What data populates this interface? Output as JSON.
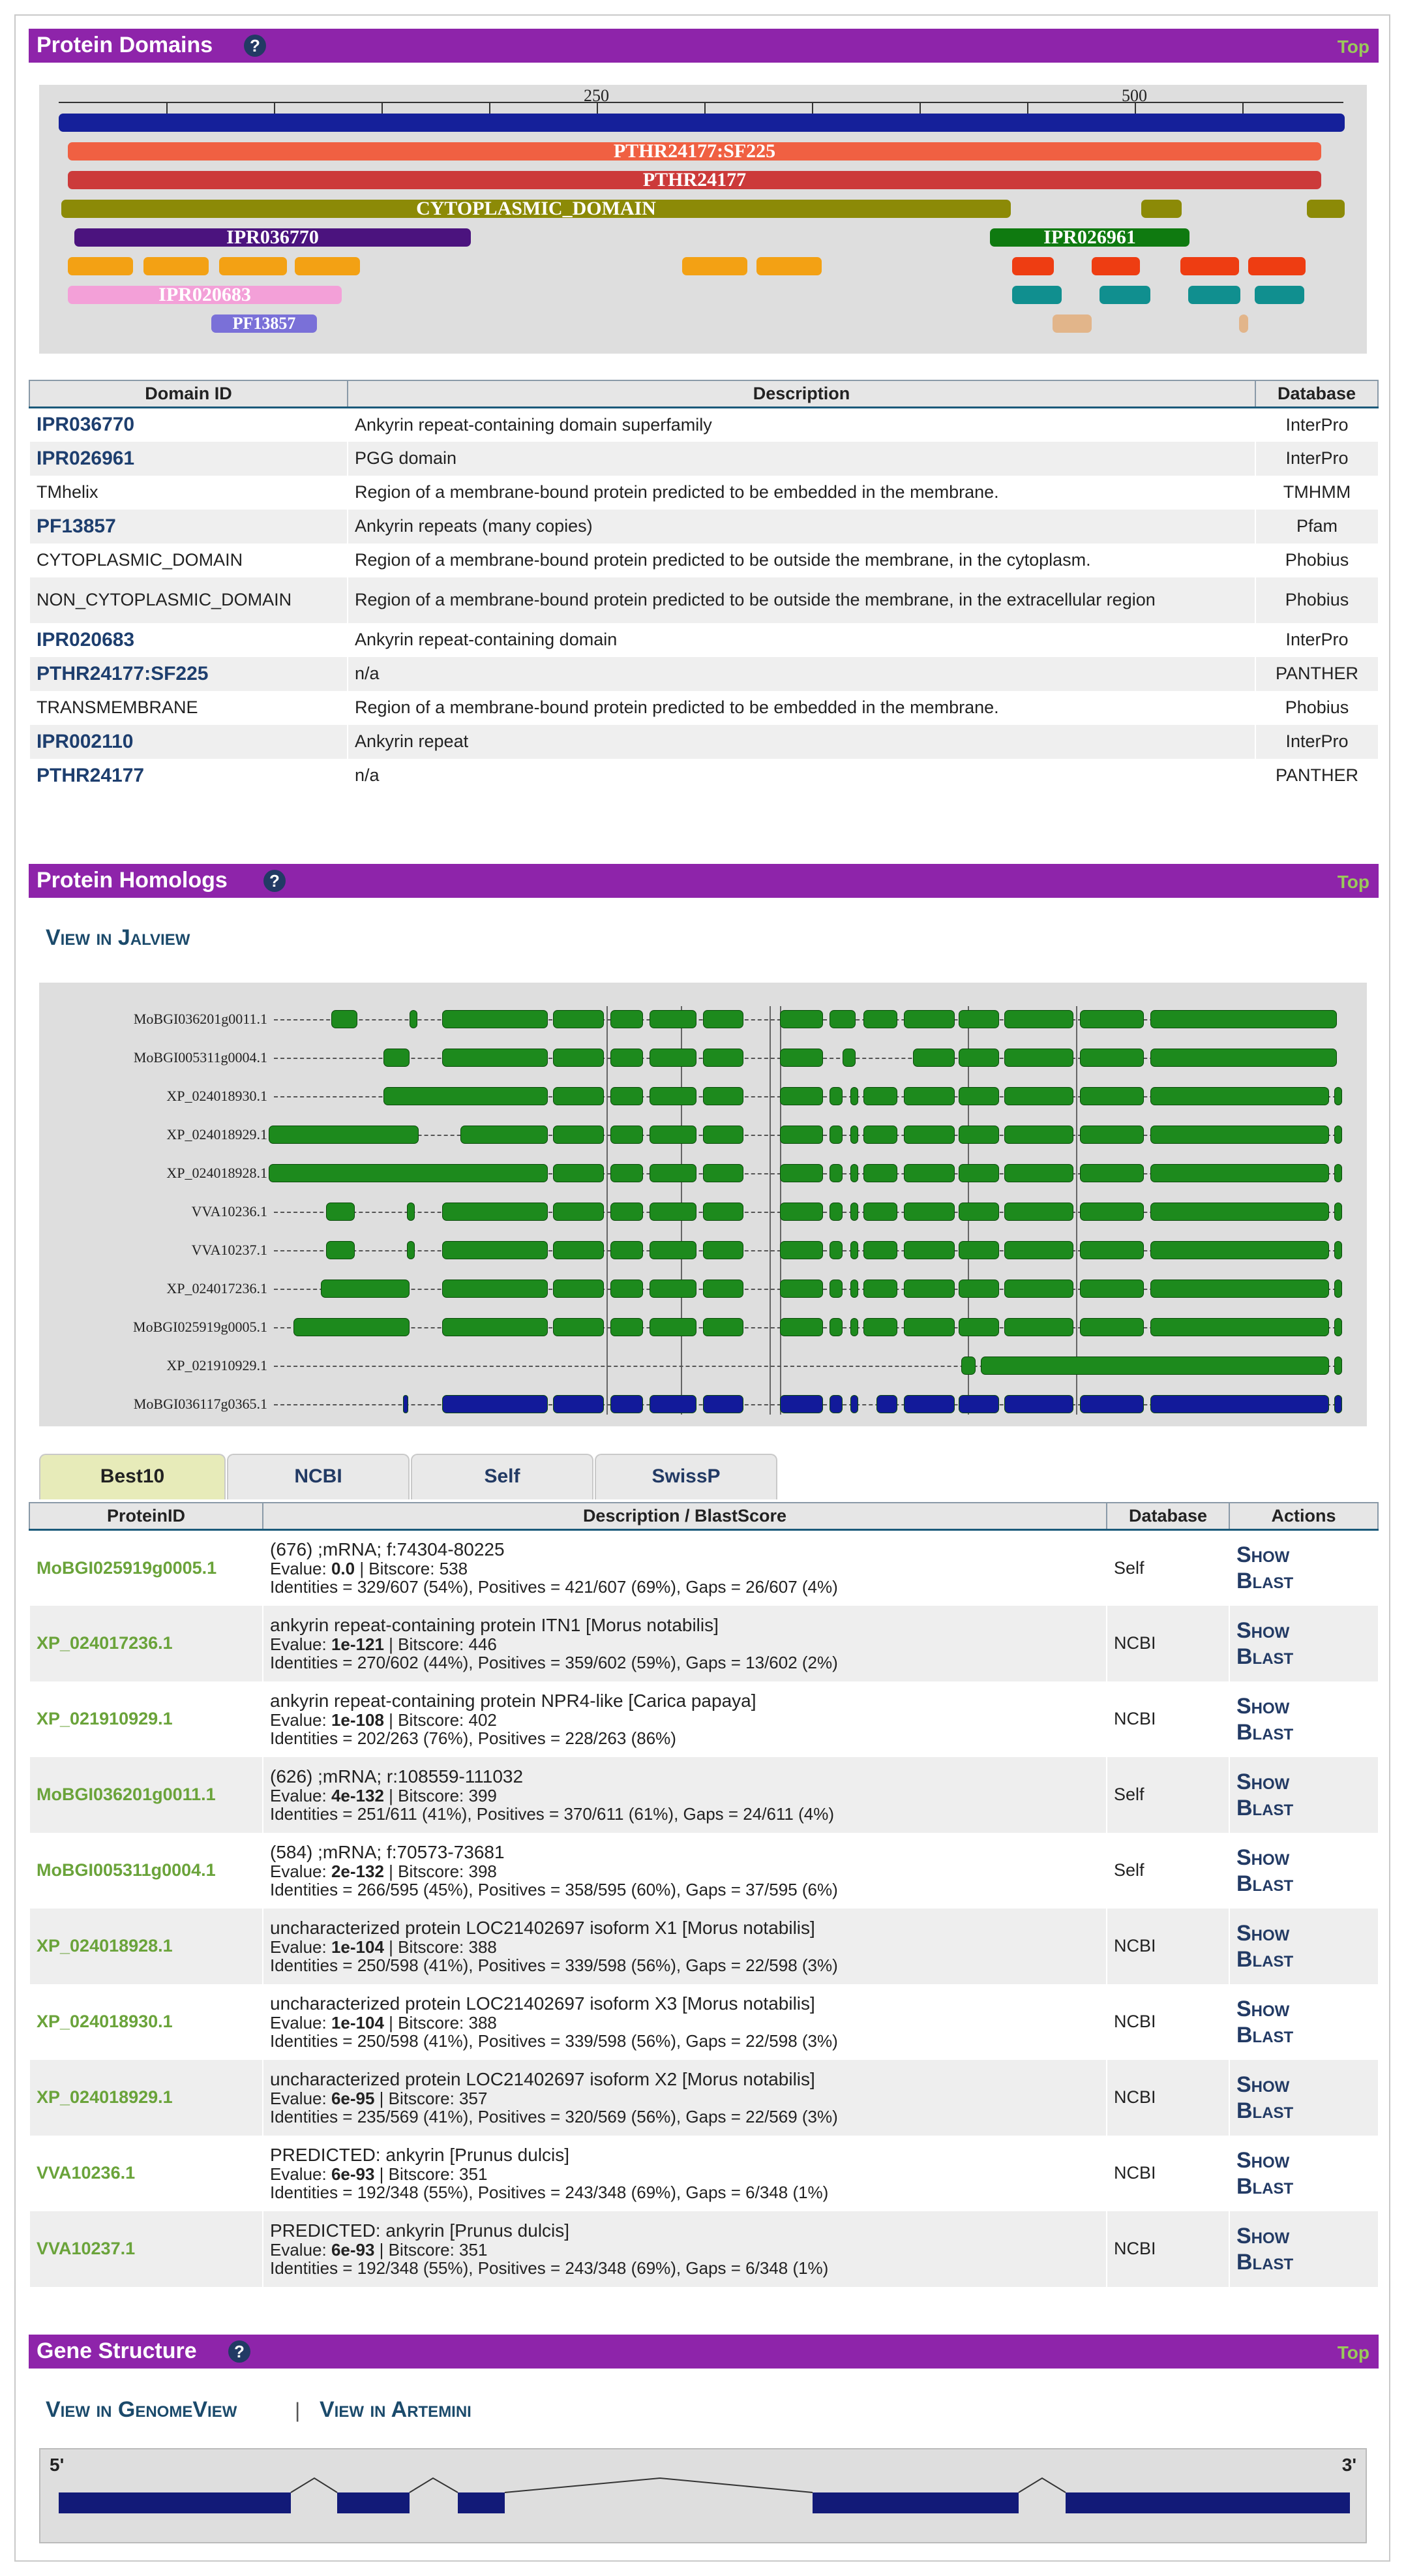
{
  "sections": {
    "domains": {
      "title": "Protein Domains",
      "top": "Top"
    },
    "homologs": {
      "title": "Protein Homologs",
      "top": "Top"
    },
    "gene": {
      "title": "Gene Structure",
      "top": "Top"
    }
  },
  "help_icon": "?",
  "domain_map": {
    "scale_labels": [
      "250",
      "500"
    ],
    "labels": {
      "pthr_sf": "PTHR24177:SF225",
      "pthr": "PTHR24177",
      "cyto": "CYTOPLASMIC_DOMAIN",
      "ipr036770": "IPR036770",
      "ipr026961": "IPR026961",
      "ipr020683": "IPR020683",
      "pf13857": "PF13857"
    },
    "colors": {
      "scale": "#15209a",
      "panther": "#f06042",
      "panther2": "#cc3a3a",
      "cyto": "#8c8a07",
      "ipr036770": "#4b137e",
      "ipr026961": "#0f7a10",
      "orange": "#f3a114",
      "red": "#ee3d12",
      "teal": "#108f8f",
      "pink": "#f3a0d8",
      "pf": "#7a70d8",
      "tan": "#e2b58a"
    }
  },
  "domain_table": {
    "headers": [
      "Domain ID",
      "Description",
      "Database"
    ],
    "rows": [
      {
        "id": "IPR036770",
        "link": true,
        "desc": "Ankyrin repeat-containing domain superfamily",
        "db": "InterPro"
      },
      {
        "id": "IPR026961",
        "link": true,
        "desc": "PGG domain",
        "db": "InterPro"
      },
      {
        "id": "TMhelix",
        "link": false,
        "desc": "Region of a membrane-bound protein predicted to be embedded in the membrane.",
        "db": "TMHMM"
      },
      {
        "id": "PF13857",
        "link": true,
        "desc": "Ankyrin repeats (many copies)",
        "db": "Pfam"
      },
      {
        "id": "CYTOPLASMIC_DOMAIN",
        "link": false,
        "desc": "Region of a membrane-bound protein predicted to be outside the membrane, in the cytoplasm.",
        "db": "Phobius"
      },
      {
        "id": "NON_CYTOPLASMIC_DOMAIN",
        "link": false,
        "desc": "Region of a membrane-bound protein predicted to be outside the membrane, in the extracellular region",
        "db": "Phobius"
      },
      {
        "id": "IPR020683",
        "link": true,
        "desc": "Ankyrin repeat-containing domain",
        "db": "InterPro"
      },
      {
        "id": "PTHR24177:SF225",
        "link": true,
        "desc": "n/a",
        "db": "PANTHER"
      },
      {
        "id": "TRANSMEMBRANE",
        "link": false,
        "desc": "Region of a membrane-bound protein predicted to be embedded in the membrane.",
        "db": "Phobius"
      },
      {
        "id": "IPR002110",
        "link": true,
        "desc": "Ankyrin repeat",
        "db": "InterPro"
      },
      {
        "id": "PTHR24177",
        "link": true,
        "desc": "n/a",
        "db": "PANTHER"
      }
    ]
  },
  "homolog_links": {
    "jalview": "View in Jalview"
  },
  "alignment": {
    "labels": [
      "MoBGI036201g0011.1",
      "MoBGI005311g0004.1",
      "XP_024018930.1",
      "XP_024018929.1",
      "XP_024018928.1",
      "VVA10236.1",
      "VVA10237.1",
      "XP_024017236.1",
      "MoBGI025919g0005.1",
      "XP_021910929.1",
      "MoBGI036117g0365.1"
    ],
    "colors": {
      "green": "#1d8a1d",
      "navy": "#121a9a"
    }
  },
  "tabs": [
    "Best10",
    "NCBI",
    "Self",
    "SwissP"
  ],
  "homolog_table": {
    "headers": [
      "ProteinID",
      "Description / BlastScore",
      "Database",
      "Actions"
    ],
    "evalue_label": "Evalue: ",
    "bitscore_sep": " | Bitscore: ",
    "actions": [
      "Show",
      "Blast"
    ],
    "rows": [
      {
        "id": "MoBGI025919g0005.1",
        "line1": "(676) ;mRNA; f:74304-80225",
        "evalue": "0.0",
        "bits": "538",
        "line3": "Identities = 329/607 (54%), Positives = 421/607 (69%), Gaps = 26/607 (4%)",
        "db": "Self"
      },
      {
        "id": "XP_024017236.1",
        "line1": "ankyrin repeat-containing protein ITN1 [Morus notabilis]",
        "evalue": "1e-121",
        "bits": "446",
        "line3": "Identities = 270/602 (44%), Positives = 359/602 (59%), Gaps = 13/602 (2%)",
        "db": "NCBI"
      },
      {
        "id": "XP_021910929.1",
        "line1": "ankyrin repeat-containing protein NPR4-like [Carica papaya]",
        "evalue": "1e-108",
        "bits": "402",
        "line3": "Identities = 202/263 (76%), Positives = 228/263 (86%)",
        "db": "NCBI"
      },
      {
        "id": "MoBGI036201g0011.1",
        "line1": "(626) ;mRNA; r:108559-111032",
        "evalue": "4e-132",
        "bits": "399",
        "line3": "Identities = 251/611 (41%), Positives = 370/611 (61%), Gaps = 24/611 (4%)",
        "db": "Self"
      },
      {
        "id": "MoBGI005311g0004.1",
        "line1": "(584) ;mRNA; f:70573-73681",
        "evalue": "2e-132",
        "bits": "398",
        "line3": "Identities = 266/595 (45%), Positives = 358/595 (60%), Gaps = 37/595 (6%)",
        "db": "Self"
      },
      {
        "id": "XP_024018928.1",
        "line1": "uncharacterized protein LOC21402697 isoform X1 [Morus notabilis]",
        "evalue": "1e-104",
        "bits": "388",
        "line3": "Identities = 250/598 (41%), Positives = 339/598 (56%), Gaps = 22/598 (3%)",
        "db": "NCBI"
      },
      {
        "id": "XP_024018930.1",
        "line1": "uncharacterized protein LOC21402697 isoform X3 [Morus notabilis]",
        "evalue": "1e-104",
        "bits": "388",
        "line3": "Identities = 250/598 (41%), Positives = 339/598 (56%), Gaps = 22/598 (3%)",
        "db": "NCBI"
      },
      {
        "id": "XP_024018929.1",
        "line1": "uncharacterized protein LOC21402697 isoform X2 [Morus notabilis]",
        "evalue": "6e-95",
        "bits": "357",
        "line3": "Identities = 235/569 (41%), Positives = 320/569 (56%), Gaps = 22/569 (3%)",
        "db": "NCBI"
      },
      {
        "id": "VVA10236.1",
        "line1": "PREDICTED: ankyrin [Prunus dulcis]",
        "evalue": "6e-93",
        "bits": "351",
        "line3": "Identities = 192/348 (55%), Positives = 243/348 (69%), Gaps = 6/348 (1%)",
        "db": "NCBI"
      },
      {
        "id": "VVA10237.1",
        "line1": "PREDICTED: ankyrin [Prunus dulcis]",
        "evalue": "6e-93",
        "bits": "351",
        "line3": "Identities = 192/348 (55%), Positives = 243/348 (69%), Gaps = 6/348 (1%)",
        "db": "NCBI"
      }
    ]
  },
  "gene_links": {
    "genomeview": "View in GenomeView",
    "sep": "|",
    "artemini": "View in Artemini"
  },
  "gene_structure": {
    "five": "5'",
    "three": "3'",
    "color": "#121a78"
  }
}
